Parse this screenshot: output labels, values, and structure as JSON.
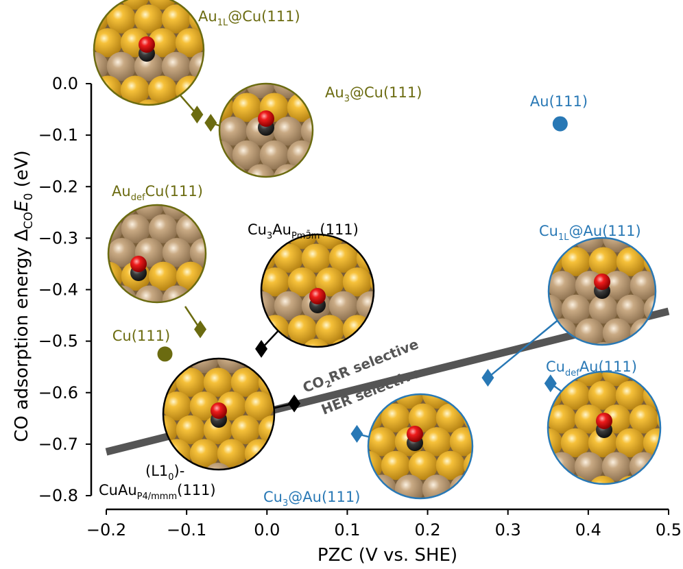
{
  "chart_data": {
    "type": "scatter",
    "xlabel": "PZC (V vs. SHE)",
    "ylabel": "CO adsorption energy Δ_CO E_0 (eV)",
    "xlim": [
      -0.2,
      0.5
    ],
    "ylim": [
      -0.8,
      0.0
    ],
    "xticks": [
      "−0.2",
      "−0.1",
      "0.0",
      "0.1",
      "0.2",
      "0.3",
      "0.4",
      "0.5"
    ],
    "yticks": [
      "0.0",
      "−0.1",
      "−0.2",
      "−0.3",
      "−0.4",
      "−0.5",
      "−0.6",
      "−0.7",
      "−0.8"
    ],
    "grid": false,
    "colors": {
      "olive": "#6b6b10",
      "blue": "#2878b5",
      "black": "#000000",
      "band": "#555555"
    },
    "series": [
      {
        "name": "Au(111)",
        "marker": "circle",
        "color": "#2878b5",
        "points": [
          [
            0.365,
            -0.078
          ]
        ]
      },
      {
        "name": "Cu(111)",
        "marker": "circle",
        "color": "#6b6b10",
        "points": [
          [
            -0.127,
            -0.525
          ]
        ]
      },
      {
        "name": "Au1L@Cu(111)",
        "marker": "diamond",
        "color": "#6b6b10",
        "points": [
          [
            -0.087,
            -0.06
          ]
        ]
      },
      {
        "name": "Au3@Cu(111)",
        "marker": "diamond",
        "color": "#6b6b10",
        "points": [
          [
            -0.07,
            -0.076
          ]
        ]
      },
      {
        "name": "AudefCu(111)",
        "marker": "diamond",
        "color": "#6b6b10",
        "points": [
          [
            -0.083,
            -0.477
          ]
        ]
      },
      {
        "name": "Cu3Au(111)",
        "marker": "diamond",
        "color": "#000000",
        "points": [
          [
            -0.007,
            -0.515
          ]
        ]
      },
      {
        "name": "(L10)-CuAu(111)",
        "marker": "diamond",
        "color": "#000000",
        "points": [
          [
            0.034,
            -0.621
          ]
        ]
      },
      {
        "name": "Cu1L@Au(111)",
        "marker": "diamond",
        "color": "#2878b5",
        "points": [
          [
            0.275,
            -0.571
          ]
        ]
      },
      {
        "name": "CudefAu(111)",
        "marker": "diamond",
        "color": "#2878b5",
        "points": [
          [
            0.353,
            -0.582
          ]
        ]
      },
      {
        "name": "Cu3@Au(111)",
        "marker": "diamond",
        "color": "#2878b5",
        "points": [
          [
            0.112,
            -0.68
          ]
        ]
      }
    ],
    "selectivity_line": {
      "from": [
        -0.2,
        -0.715
      ],
      "to": [
        0.5,
        -0.442
      ],
      "label_above": "CO2RR selective",
      "label_below": "HER selective"
    },
    "annotations": [
      {
        "id": "au1l-cu",
        "main": "Au",
        "sub": "1L",
        "rest": "@Cu(111)",
        "color": "#6b6b10"
      },
      {
        "id": "au3-cu",
        "main": "Au",
        "sub": "3",
        "rest": "@Cu(111)",
        "color": "#6b6b10"
      },
      {
        "id": "au111",
        "main": "Au(111)",
        "sub": "",
        "rest": "",
        "color": "#2878b5"
      },
      {
        "id": "audef-cu",
        "main": "Au",
        "sub": "def",
        "rest": "Cu(111)",
        "color": "#6b6b10"
      },
      {
        "id": "cu111",
        "main": "Cu(111)",
        "sub": "",
        "rest": "",
        "color": "#6b6b10"
      },
      {
        "id": "cu3au",
        "main": "Cu",
        "sub": "3",
        "rest": "Au",
        "sub2": "Pm3̄m",
        "rest2": "(111)",
        "color": "#000000"
      },
      {
        "id": "cu1l-au",
        "main": "Cu",
        "sub": "1L",
        "rest": "@Au(111)",
        "color": "#2878b5"
      },
      {
        "id": "cudef-au",
        "main": "Cu",
        "sub": "def",
        "rest": "Au(111)",
        "color": "#2878b5"
      },
      {
        "id": "cu3-au",
        "main": "Cu",
        "sub": "3",
        "rest": "@Au(111)",
        "color": "#2878b5"
      },
      {
        "id": "l10-line1",
        "main": "(L1",
        "sub": "0",
        "rest": ")-",
        "color": "#000000"
      },
      {
        "id": "l10-line2",
        "main": "CuAu",
        "sub": "P4/mmm",
        "rest": "(111)",
        "color": "#000000"
      }
    ]
  }
}
